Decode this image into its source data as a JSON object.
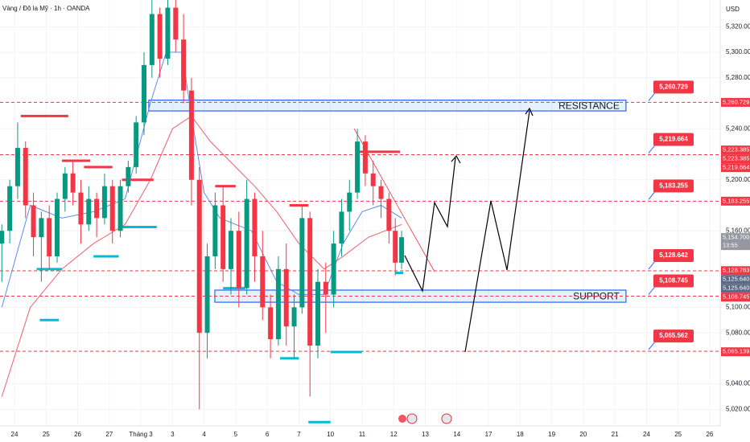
{
  "chart_data": {
    "type": "candlestick",
    "title": "Vàng / Đô la Mỹ · 1h · OANDA",
    "currency_label": "USD",
    "categories": [
      "24",
      "25",
      "26",
      "27",
      "Tháng 3",
      "3",
      "4",
      "5",
      "6",
      "7",
      "10",
      "11",
      "12",
      "13",
      "14",
      "17",
      "18",
      "19",
      "20",
      "21",
      "24",
      "25",
      "26"
    ],
    "ylim": [
      5007,
      5341
    ],
    "grid": true,
    "yticks": [
      {
        "value": 5020,
        "label": "5,020.000"
      },
      {
        "value": 5040,
        "label": "5,040.000"
      },
      {
        "value": 5080,
        "label": "5,080.000"
      },
      {
        "value": 5100,
        "label": "5,100.000"
      },
      {
        "value": 5160,
        "label": "5,160.000"
      },
      {
        "value": 5200,
        "label": "5,200.000"
      },
      {
        "value": 5240,
        "label": "5,240.000"
      },
      {
        "value": 5280,
        "label": "5,280.000"
      },
      {
        "value": 5300,
        "label": "5,300.000"
      },
      {
        "value": 5320,
        "label": "5,320.000"
      }
    ],
    "up_color": "#089981",
    "down_color": "#f23645",
    "candles": {
      "x": [
        -0.4,
        -0.15,
        0.1,
        0.35,
        0.6,
        0.85,
        1.1,
        1.35,
        1.6,
        1.85,
        2.1,
        2.35,
        2.6,
        2.85,
        3.1,
        3.35,
        3.6,
        3.85,
        4.1,
        4.35,
        4.6,
        4.85,
        5.1,
        5.35,
        5.6,
        5.85,
        6.1,
        6.35,
        6.6,
        6.85,
        7.1,
        7.35,
        7.6,
        7.85,
        8.1,
        8.35,
        8.6,
        8.85,
        9.1,
        9.35,
        9.6,
        9.85,
        10.1,
        10.35,
        10.6,
        10.85,
        11.1,
        11.35,
        11.6,
        11.85,
        12.05,
        12.25
      ],
      "open": [
        5150,
        5160,
        5195,
        5225,
        5180,
        5155,
        5170,
        5140,
        5185,
        5205,
        5190,
        5165,
        5185,
        5170,
        5195,
        5160,
        5195,
        5210,
        5245,
        5290,
        5330,
        5295,
        5335,
        5310,
        5270,
        5200,
        5080,
        5140,
        5180,
        5130,
        5160,
        5115,
        5185,
        5140,
        5100,
        5075,
        5130,
        5085,
        5100,
        5170,
        5070,
        5120,
        5110,
        5150,
        5175,
        5190,
        5230,
        5205,
        5195,
        5185,
        5160,
        5135
      ],
      "high": [
        5165,
        5200,
        5245,
        5230,
        5190,
        5175,
        5180,
        5190,
        5210,
        5215,
        5200,
        5195,
        5190,
        5205,
        5200,
        5200,
        5215,
        5250,
        5300,
        5345,
        5335,
        5345,
        5345,
        5330,
        5280,
        5210,
        5150,
        5190,
        5195,
        5170,
        5175,
        5200,
        5190,
        5160,
        5110,
        5140,
        5150,
        5110,
        5180,
        5175,
        5130,
        5135,
        5160,
        5185,
        5200,
        5240,
        5235,
        5215,
        5200,
        5190,
        5170,
        5160
      ],
      "low": [
        5120,
        5150,
        5185,
        5170,
        5140,
        5120,
        5130,
        5135,
        5175,
        5180,
        5150,
        5160,
        5155,
        5165,
        5150,
        5155,
        5190,
        5205,
        5235,
        5280,
        5280,
        5290,
        5300,
        5260,
        5180,
        5020,
        5060,
        5130,
        5120,
        5110,
        5100,
        5110,
        5120,
        5090,
        5060,
        5070,
        5070,
        5060,
        5095,
        5030,
        5060,
        5080,
        5100,
        5140,
        5160,
        5185,
        5195,
        5180,
        5170,
        5150,
        5125,
        5130
      ],
      "close": [
        5160,
        5195,
        5225,
        5180,
        5155,
        5170,
        5140,
        5185,
        5205,
        5190,
        5165,
        5185,
        5170,
        5195,
        5160,
        5195,
        5210,
        5245,
        5290,
        5330,
        5295,
        5335,
        5310,
        5270,
        5200,
        5080,
        5140,
        5180,
        5130,
        5160,
        5115,
        5185,
        5140,
        5100,
        5075,
        5130,
        5085,
        5100,
        5170,
        5070,
        5120,
        5110,
        5150,
        5175,
        5190,
        5230,
        5205,
        5195,
        5185,
        5160,
        5135,
        5155
      ]
    },
    "overlays": [
      {
        "color": "#5b8def",
        "x": [
          -0.4,
          0.5,
          1.5,
          2.5,
          3.5,
          4.3,
          4.8,
          5.3,
          5.6,
          6.0,
          6.5,
          7.5,
          8.3,
          9.0,
          9.8,
          10.4,
          11.0,
          11.6,
          12.25
        ],
        "values": [
          5100,
          5180,
          5170,
          5175,
          5185,
          5260,
          5300,
          5300,
          5250,
          5190,
          5170,
          5160,
          5120,
          5110,
          5110,
          5150,
          5175,
          5180,
          5170
        ]
      },
      {
        "color": "#f0606c",
        "x": [
          -0.4,
          0.5,
          1.5,
          2.5,
          3.5,
          4.3,
          5.0,
          5.6,
          6.2,
          7.0,
          7.6,
          8.3,
          9.0,
          9.8,
          10.4,
          11.2,
          12.25
        ],
        "values": [
          5030,
          5100,
          5130,
          5150,
          5165,
          5200,
          5240,
          5250,
          5230,
          5210,
          5195,
          5175,
          5150,
          5130,
          5140,
          5155,
          5165
        ]
      }
    ],
    "markers": [
      {
        "start": 0.2,
        "end": 1.7,
        "value": 5250,
        "color": "#f23645"
      },
      {
        "start": 1.5,
        "end": 2.4,
        "value": 5215,
        "color": "#f23645"
      },
      {
        "start": 2.2,
        "end": 3.1,
        "value": 5210,
        "color": "#f23645"
      },
      {
        "start": 3.4,
        "end": 4.4,
        "value": 5200,
        "color": "#f23645"
      },
      {
        "start": 6.35,
        "end": 7.0,
        "value": 5195,
        "color": "#f23645"
      },
      {
        "start": 8.7,
        "end": 9.3,
        "value": 5180,
        "color": "#f23645"
      },
      {
        "start": 10.9,
        "end": 12.2,
        "value": 5222,
        "color": "#f23645"
      },
      {
        "start": 0.7,
        "end": 1.5,
        "value": 5130,
        "color": "#00bcd4"
      },
      {
        "start": 0.8,
        "end": 1.4,
        "value": 5090,
        "color": "#00bcd4"
      },
      {
        "start": 2.5,
        "end": 3.3,
        "value": 5140,
        "color": "#00bcd4"
      },
      {
        "start": 3.3,
        "end": 4.5,
        "value": 5163,
        "color": "#00bcd4"
      },
      {
        "start": 6.6,
        "end": 7.3,
        "value": 5115,
        "color": "#00bcd4"
      },
      {
        "start": 8.4,
        "end": 9.0,
        "value": 5060,
        "color": "#00bcd4"
      },
      {
        "start": 9.3,
        "end": 10.0,
        "value": 5010,
        "color": "#00bcd4"
      },
      {
        "start": 10.0,
        "end": 11.0,
        "value": 5065,
        "color": "#00bcd4"
      },
      {
        "start": 12.05,
        "end": 12.3,
        "value": 5127,
        "color": "#00bcd4"
      }
    ],
    "zones": [
      {
        "label": "RESISTANCE",
        "from": 5254,
        "to": 5262.5,
        "start": 4.25,
        "end": 19.35
      },
      {
        "label": "SUPPORT",
        "from": 5104,
        "to": 5113.5,
        "start": 6.34,
        "end": 19.35
      }
    ],
    "levels": [
      {
        "value": 5260.729,
        "label": "5,260.729"
      },
      {
        "value": 5219.664,
        "label": "5,219.664"
      },
      {
        "value": 5183.255,
        "label": "5,183.255"
      },
      {
        "value": 5128.642,
        "label": "5,128.642"
      },
      {
        "value": 5108.745,
        "label": "5,108.745"
      },
      {
        "value": 5065.562,
        "label": "5,065.562"
      }
    ],
    "axis_badges": [
      {
        "value": 5260.729,
        "label": "5,260.729",
        "color": "#f23645"
      },
      {
        "value": 5223.385,
        "label": "5,223.385",
        "color": "#f23645"
      },
      {
        "value": 5223.385,
        "label": "5,223.385",
        "color": "#f23645"
      },
      {
        "value": 5219.664,
        "label": "5,219.664",
        "color": "#f23645"
      },
      {
        "value": 5183.255,
        "label": "5,183.255",
        "color": "#f23645"
      },
      {
        "value": 5154.7,
        "label": "5,154.700",
        "color": "#9598a1",
        "sublabel": "13:55"
      },
      {
        "value": 5128.783,
        "label": "5,128.783",
        "color": "#f23645"
      },
      {
        "value": 5125.64,
        "label": "5,125.640",
        "color": "#5d6a86"
      },
      {
        "value": 5125.64,
        "label": "5,125.640",
        "color": "#5d6a86"
      },
      {
        "value": 5108.745,
        "label": "5,108.745",
        "color": "#f23645"
      },
      {
        "value": 5065.139,
        "label": "5,065.139",
        "color": "#f23645"
      }
    ]
  }
}
